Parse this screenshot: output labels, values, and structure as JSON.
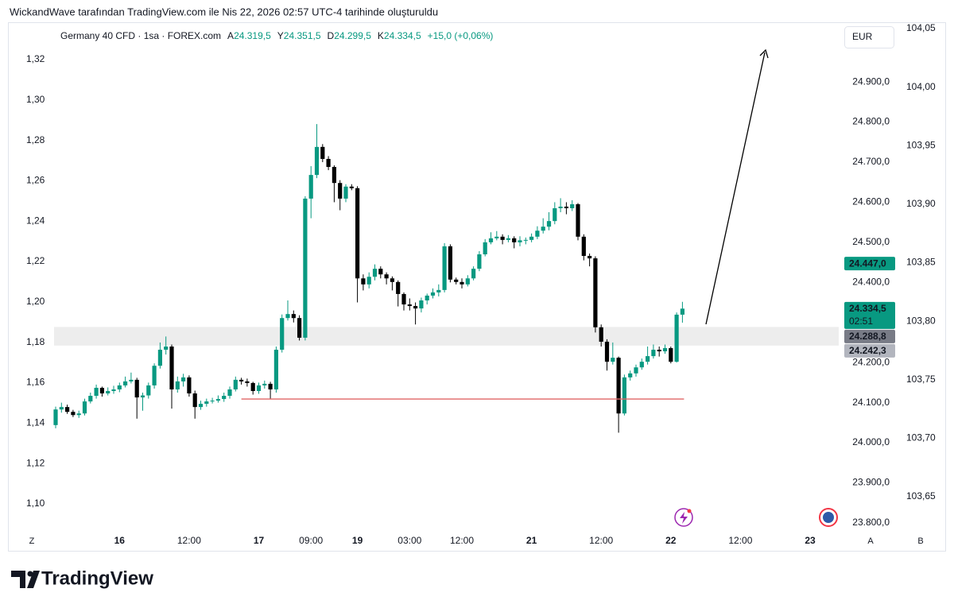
{
  "header": {
    "title": "WickandWave tarafından TradingView.com ile Nis 22, 2026 02:57 UTC-4 tarihinde oluşturuldu"
  },
  "legend": {
    "symbol": "Germany 40 CFD · 1sa · FOREX.com",
    "ohlc": [
      {
        "key": "A",
        "value": "24.319,5"
      },
      {
        "key": "Y",
        "value": "24.351,5"
      },
      {
        "key": "D",
        "value": "24.299,5"
      },
      {
        "key": "K",
        "value": "24.334,5"
      }
    ],
    "change": "+15,0 (+0,06%)"
  },
  "currency_button": "EUR",
  "footer": {
    "brand": "TradingView"
  },
  "chart_data": {
    "type": "candlestick",
    "up_color": "#089981",
    "down_color": "#000000",
    "categories": [
      null,
      null,
      null,
      null,
      null,
      null,
      null,
      null,
      null,
      null,
      null,
      "16",
      null,
      null,
      null,
      null,
      null,
      null,
      null,
      null,
      null,
      null,
      null,
      "12:00",
      null,
      null,
      null,
      null,
      null,
      null,
      null,
      null,
      null,
      null,
      null,
      "17",
      null,
      null,
      null,
      null,
      null,
      null,
      null,
      null,
      "09:00",
      null,
      null,
      null,
      null,
      null,
      null,
      null,
      "19",
      null,
      null,
      null,
      null,
      null,
      null,
      null,
      null,
      "03:00",
      null,
      null,
      null,
      null,
      null,
      null,
      null,
      null,
      "12:00",
      null,
      null,
      null,
      null,
      null,
      null,
      null,
      null,
      null,
      null,
      null,
      "21",
      null,
      null,
      null,
      null,
      null,
      null,
      null,
      null,
      null,
      null,
      null,
      "12:00",
      null,
      null,
      null,
      null,
      null,
      null,
      null,
      null,
      null,
      null,
      null,
      "22",
      null,
      null,
      null,
      null,
      null,
      null,
      null,
      null,
      null,
      null,
      null,
      "12:00",
      null,
      null,
      null,
      null,
      null,
      null,
      null,
      null,
      null,
      null,
      null,
      "23",
      null
    ],
    "open": [
      24044,
      24083,
      24089,
      24077,
      24069,
      24073,
      24103,
      24117,
      24137,
      24123,
      24129,
      24133,
      24143,
      24153,
      24157,
      24113,
      24118,
      24143,
      24192,
      24232,
      24240,
      24133,
      24153,
      24163,
      24123,
      24089,
      24097,
      24103,
      24105,
      24109,
      24117,
      24133,
      24157,
      24153,
      24149,
      24129,
      24143,
      24147,
      24133,
      24232,
      24311,
      24321,
      24311,
      24262,
      24609,
      24668,
      24738,
      24708,
      24688,
      24648,
      24609,
      24639,
      24635,
      24410,
      24395,
      24414,
      24434,
      24420,
      24410,
      24401,
      24371,
      24345,
      24341,
      24335,
      24355,
      24367,
      24375,
      24381,
      24490,
      24407,
      24401,
      24395,
      24410,
      24434,
      24470,
      24500,
      24510,
      24514,
      24506,
      24510,
      24500,
      24505,
      24506,
      24514,
      24529,
      24539,
      24553,
      24585,
      24589,
      24585,
      24595,
      24514,
      24466,
      24460,
      24288,
      24252,
      24202,
      24212,
      24073,
      24163,
      24173,
      24188,
      24202,
      24216,
      24232,
      24228,
      24236,
      24202,
      24319.5,
      null,
      null,
      null,
      null,
      null,
      null,
      null,
      null,
      null,
      null,
      null,
      null,
      null,
      null,
      null,
      null,
      null,
      null,
      null,
      null,
      null,
      null,
      null
    ],
    "high": [
      24090,
      24100,
      24095,
      24082,
      24080,
      24110,
      24125,
      24145,
      24140,
      24138,
      24142,
      24150,
      24165,
      24175,
      24162,
      24125,
      24150,
      24198,
      24250,
      24265,
      24245,
      24165,
      24172,
      24168,
      24130,
      24105,
      24110,
      24112,
      24118,
      24125,
      24140,
      24165,
      24162,
      24160,
      24152,
      24150,
      24155,
      24152,
      24240,
      24320,
      24355,
      24330,
      24318,
      24615,
      24690,
      24795,
      24745,
      24715,
      24692,
      24655,
      24645,
      24645,
      24640,
      24420,
      24425,
      24445,
      24440,
      24425,
      24415,
      24405,
      24375,
      24360,
      24350,
      24362,
      24372,
      24385,
      24395,
      24498,
      24495,
      24412,
      24410,
      24418,
      24440,
      24478,
      24508,
      24525,
      24528,
      24520,
      24518,
      24515,
      24515,
      24512,
      24522,
      24540,
      24560,
      24575,
      24600,
      24610,
      24600,
      24605,
      24598,
      24520,
      24472,
      24465,
      24295,
      24258,
      24250,
      24215,
      24170,
      24180,
      24195,
      24210,
      24240,
      24245,
      24240,
      24245,
      24240,
      24325,
      24351.5,
      null,
      null,
      null,
      null,
      null,
      null,
      null,
      null,
      null,
      null,
      null,
      null,
      null,
      null,
      null,
      null,
      null,
      null,
      null,
      null,
      null,
      null,
      null
    ],
    "low": [
      24036,
      24075,
      24072,
      24064,
      24062,
      24068,
      24098,
      24110,
      24115,
      24118,
      24122,
      24126,
      24138,
      24148,
      24060,
      24080,
      24110,
      24135,
      24185,
      24220,
      24085,
      24125,
      24140,
      24115,
      24060,
      24082,
      24090,
      24098,
      24100,
      24102,
      24110,
      24128,
      24145,
      24140,
      24120,
      24122,
      24135,
      24110,
      24125,
      24225,
      24305,
      24300,
      24255,
      24255,
      24560,
      24660,
      24700,
      24680,
      24600,
      24580,
      24600,
      24630,
      24350,
      24380,
      24385,
      24405,
      24410,
      24395,
      24380,
      24340,
      24330,
      24330,
      24295,
      24325,
      24345,
      24360,
      24365,
      24375,
      24400,
      24395,
      24385,
      24390,
      24405,
      24428,
      24465,
      24495,
      24505,
      24495,
      24500,
      24485,
      24490,
      24495,
      24500,
      24508,
      24522,
      24530,
      24545,
      24575,
      24570,
      24578,
      24505,
      24455,
      24440,
      24275,
      24240,
      24180,
      24195,
      24025,
      24068,
      24155,
      24165,
      24182,
      24195,
      24210,
      24215,
      24222,
      24198,
      24200,
      24299.5,
      null,
      null,
      null,
      null,
      null,
      null,
      null,
      null,
      null,
      null,
      null,
      null,
      null,
      null,
      null,
      null,
      null,
      null,
      null,
      null,
      null,
      null,
      null
    ],
    "close": [
      24083,
      24089,
      24077,
      24069,
      24073,
      24103,
      24117,
      24137,
      24123,
      24129,
      24133,
      24143,
      24153,
      24157,
      24113,
      24118,
      24143,
      24192,
      24232,
      24240,
      24133,
      24153,
      24163,
      24123,
      24089,
      24097,
      24103,
      24105,
      24109,
      24117,
      24133,
      24157,
      24153,
      24149,
      24129,
      24143,
      24147,
      24133,
      24232,
      24311,
      24321,
      24311,
      24262,
      24609,
      24668,
      24738,
      24708,
      24688,
      24648,
      24609,
      24639,
      24635,
      24410,
      24395,
      24414,
      24434,
      24420,
      24410,
      24401,
      24371,
      24345,
      24341,
      24335,
      24355,
      24367,
      24375,
      24381,
      24490,
      24407,
      24401,
      24395,
      24410,
      24434,
      24470,
      24500,
      24510,
      24514,
      24506,
      24510,
      24500,
      24505,
      24506,
      24514,
      24529,
      24539,
      24553,
      24585,
      24589,
      24585,
      24595,
      24514,
      24466,
      24460,
      24288,
      24252,
      24202,
      24212,
      24073,
      24163,
      24173,
      24188,
      24202,
      24216,
      24232,
      24228,
      24236,
      24202,
      24319.5,
      24334.5,
      null,
      null,
      null,
      null,
      null,
      null,
      null,
      null,
      null,
      null,
      null,
      null,
      null,
      null,
      null,
      null,
      null,
      null,
      null,
      null,
      null,
      null,
      null
    ],
    "ylim": [
      23780,
      25045
    ],
    "yticks": [
      {
        "value": 24900,
        "label": "24.900,0"
      },
      {
        "value": 24800,
        "label": "24.800,0"
      },
      {
        "value": 24700,
        "label": "24.700,0"
      },
      {
        "value": 24600,
        "label": "24.600,0"
      },
      {
        "value": 24500,
        "label": "24.500,0"
      },
      {
        "value": 24400,
        "label": "24.400,0"
      },
      {
        "value": 24300,
        "label": "24.300,0"
      },
      {
        "value": 24200,
        "label": "24.200,0"
      },
      {
        "value": 24100,
        "label": "24.100,0"
      },
      {
        "value": 24000,
        "label": "24.000,0"
      },
      {
        "value": 23900,
        "label": "23.900,0"
      },
      {
        "value": 23800,
        "label": "23.800,0"
      }
    ],
    "price_labels": [
      {
        "value": 24447,
        "label": "24.447,0",
        "color": "#089981"
      },
      {
        "value": 24334.5,
        "label": "24.334,5",
        "sublabel": "02:51",
        "color": "#089981"
      },
      {
        "value": 24288.8,
        "label": "24.288,8",
        "color": "#787b86"
      },
      {
        "value": 24242.3,
        "label": "24.242,3",
        "color": "#b2b5be"
      }
    ],
    "support_line": {
      "value": 24109,
      "color": "#e06666"
    },
    "left_axis": {
      "ylim": [
        1.0866,
        1.3377
      ],
      "yticks": [
        {
          "value": 1.32,
          "label": "1,32"
        },
        {
          "value": 1.3,
          "label": "1,30"
        },
        {
          "value": 1.28,
          "label": "1,28"
        },
        {
          "value": 1.26,
          "label": "1,26"
        },
        {
          "value": 1.24,
          "label": "1,24"
        },
        {
          "value": 1.22,
          "label": "1,22"
        },
        {
          "value": 1.2,
          "label": "1,20"
        },
        {
          "value": 1.18,
          "label": "1,18"
        },
        {
          "value": 1.16,
          "label": "1,16"
        },
        {
          "value": 1.14,
          "label": "1,14"
        },
        {
          "value": 1.12,
          "label": "1,12"
        },
        {
          "value": 1.1,
          "label": "1,10"
        }
      ]
    },
    "right_axis": {
      "ylim": [
        103.6208,
        104.0541
      ],
      "yticks": [
        {
          "value": 104.05,
          "label": "104,05"
        },
        {
          "value": 104.0,
          "label": "104,00"
        },
        {
          "value": 103.95,
          "label": "103,95"
        },
        {
          "value": 103.9,
          "label": "103,90"
        },
        {
          "value": 103.85,
          "label": "103,85"
        },
        {
          "value": 103.8,
          "label": "103,80"
        },
        {
          "value": 103.75,
          "label": "103,75"
        },
        {
          "value": 103.7,
          "label": "103,70"
        },
        {
          "value": 103.65,
          "label": "103,65"
        }
      ]
    },
    "axis_buttons": [
      "Z",
      "A",
      "B"
    ]
  }
}
